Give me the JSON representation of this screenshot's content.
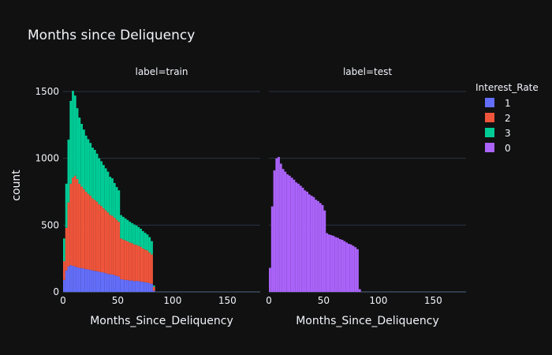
{
  "chart_data": {
    "type": "bar",
    "subtype": "stacked-histogram-facets",
    "title": "Months since Deliquency",
    "xlabel": "Months_Since_Deliquency",
    "ylabel": "count",
    "xlim": [
      0,
      180
    ],
    "ylim": [
      0,
      1600
    ],
    "x_ticks": [
      0,
      50,
      100,
      150
    ],
    "y_ticks": [
      0,
      500,
      1000,
      1500
    ],
    "grid": true,
    "legend": {
      "title": "Interest_Rate",
      "placement": "right",
      "entries": [
        {
          "name": "1",
          "color": "#636efa"
        },
        {
          "name": "2",
          "color": "#ef553b"
        },
        {
          "name": "3",
          "color": "#00cc96"
        },
        {
          "name": "0",
          "color": "#ab63fa"
        }
      ]
    },
    "facets": [
      {
        "label": "label=train",
        "bins": [
          0,
          2,
          4,
          6,
          8,
          10,
          12,
          14,
          16,
          18,
          20,
          22,
          24,
          26,
          28,
          30,
          32,
          34,
          36,
          38,
          40,
          42,
          44,
          46,
          48,
          50,
          52,
          54,
          56,
          58,
          60,
          62,
          64,
          66,
          68,
          70,
          72,
          74,
          76,
          78,
          80,
          82,
          84
        ],
        "bin_width": 2,
        "series": [
          {
            "name": "1",
            "color": "#636efa",
            "values": [
              90,
              160,
              190,
              200,
              195,
              190,
              185,
              180,
              178,
              175,
              170,
              168,
              165,
              160,
              158,
              155,
              150,
              148,
              145,
              140,
              135,
              132,
              130,
              125,
              120,
              115,
              95,
              92,
              90,
              88,
              85,
              85,
              80,
              82,
              80,
              78,
              75,
              72,
              70,
              65,
              60,
              8,
              0
            ]
          },
          {
            "name": "2",
            "color": "#ef553b",
            "values": [
              140,
              320,
              480,
              610,
              660,
              680,
              660,
              630,
              610,
              595,
              580,
              565,
              555,
              540,
              530,
              520,
              505,
              495,
              480,
              470,
              460,
              445,
              440,
              430,
              420,
              410,
              305,
              300,
              295,
              290,
              285,
              280,
              275,
              270,
              265,
              260,
              250,
              245,
              240,
              230,
              220,
              30,
              0
            ]
          },
          {
            "name": "3",
            "color": "#00cc96",
            "values": [
              170,
              330,
              470,
              620,
              650,
              600,
              530,
              495,
              470,
              445,
              420,
              410,
              395,
              380,
              375,
              360,
              345,
              335,
              325,
              315,
              305,
              285,
              280,
              260,
              245,
              235,
              175,
              170,
              165,
              160,
              155,
              150,
              150,
              145,
              140,
              135,
              130,
              125,
              120,
              115,
              100,
              10,
              0
            ]
          }
        ]
      },
      {
        "label": "label=test",
        "bins": [
          0,
          2,
          4,
          6,
          8,
          10,
          12,
          14,
          16,
          18,
          20,
          22,
          24,
          26,
          28,
          30,
          32,
          34,
          36,
          38,
          40,
          42,
          44,
          46,
          48,
          50,
          52,
          54,
          56,
          58,
          60,
          62,
          64,
          66,
          68,
          70,
          72,
          74,
          76,
          78,
          80,
          82,
          84
        ],
        "bin_width": 2,
        "series": [
          {
            "name": "0",
            "color": "#ab63fa",
            "values": [
              180,
              640,
              910,
              1000,
              1010,
              960,
              920,
              900,
              880,
              870,
              855,
              840,
              820,
              810,
              795,
              780,
              760,
              750,
              730,
              720,
              710,
              690,
              680,
              665,
              650,
              610,
              440,
              430,
              425,
              420,
              410,
              405,
              395,
              390,
              380,
              370,
              360,
              355,
              345,
              335,
              320,
              20,
              0
            ]
          }
        ]
      }
    ]
  }
}
